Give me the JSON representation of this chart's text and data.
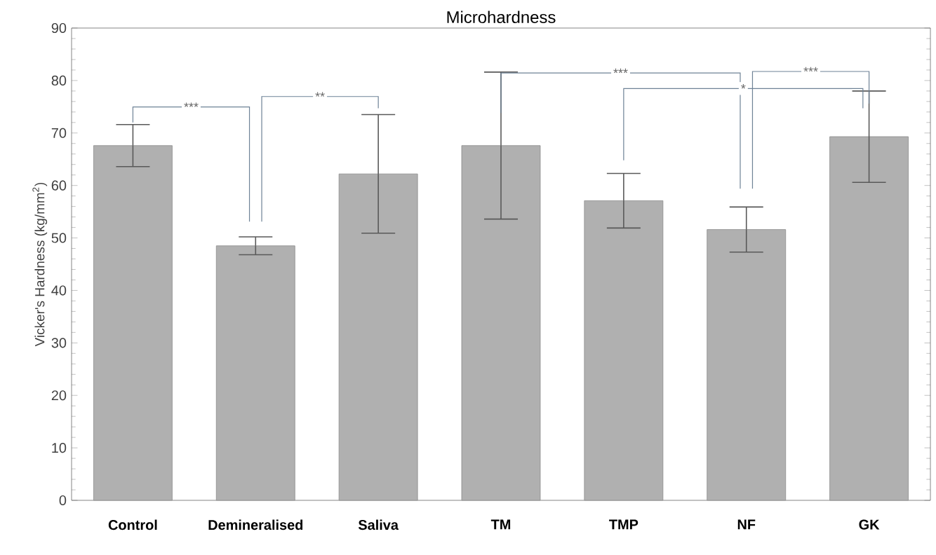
{
  "chart_data": {
    "type": "bar",
    "title": "Microhardness",
    "ylabel": "Vicker's Hardness (kg/mm$^{2}$)",
    "categories": [
      "Control",
      "Demineralised",
      "Saliva",
      "TM",
      "TMP",
      "NF",
      "GK"
    ],
    "values": [
      67.6,
      48.5,
      62.2,
      67.6,
      57.1,
      51.6,
      69.3
    ],
    "errors": [
      4.0,
      1.7,
      11.3,
      14.0,
      5.2,
      4.3,
      8.7
    ],
    "color": "#b0b0b0",
    "ylim": [
      0,
      90
    ],
    "yticks": [
      0,
      10,
      20,
      30,
      40,
      50,
      60,
      70,
      80,
      90
    ],
    "grid": false,
    "annotations": [
      "***",
      "**",
      "***",
      "*",
      "***"
    ]
  }
}
